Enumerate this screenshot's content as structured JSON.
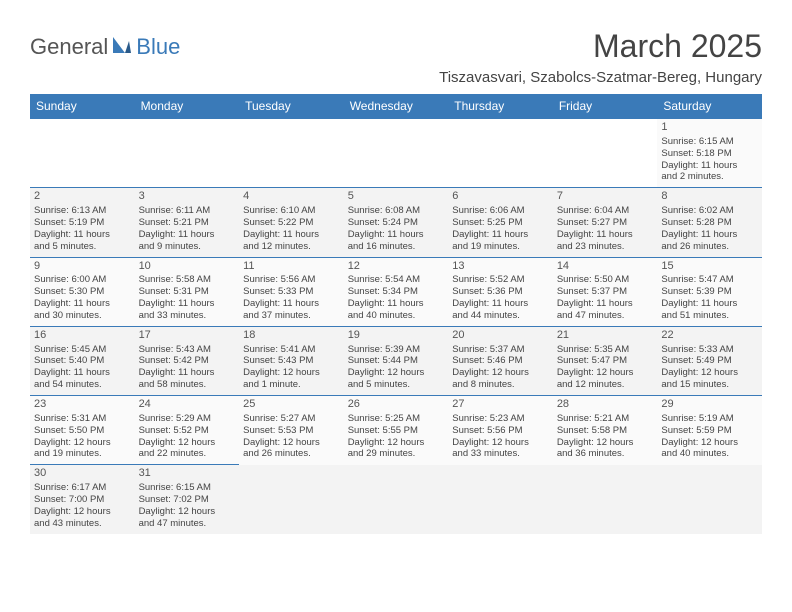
{
  "logo": {
    "part1": "General",
    "part2": "Blue"
  },
  "title": "March 2025",
  "subtitle": "Tiszavasvari, Szabolcs-Szatmar-Bereg, Hungary",
  "colors": {
    "header_bg": "#3a7ab8",
    "header_text": "#ffffff",
    "title_color": "#444444",
    "border": "#3a7ab8",
    "row_alt": "#f3f3f3",
    "row_bg": "#fafafa"
  },
  "weekdays": [
    "Sunday",
    "Monday",
    "Tuesday",
    "Wednesday",
    "Thursday",
    "Friday",
    "Saturday"
  ],
  "cells": [
    {
      "empty": true
    },
    {
      "empty": true
    },
    {
      "empty": true
    },
    {
      "empty": true
    },
    {
      "empty": true
    },
    {
      "empty": true
    },
    {
      "day": "1",
      "sunrise": "Sunrise: 6:15 AM",
      "sunset": "Sunset: 5:18 PM",
      "daylight1": "Daylight: 11 hours",
      "daylight2": "and 2 minutes."
    },
    {
      "day": "2",
      "sunrise": "Sunrise: 6:13 AM",
      "sunset": "Sunset: 5:19 PM",
      "daylight1": "Daylight: 11 hours",
      "daylight2": "and 5 minutes."
    },
    {
      "day": "3",
      "sunrise": "Sunrise: 6:11 AM",
      "sunset": "Sunset: 5:21 PM",
      "daylight1": "Daylight: 11 hours",
      "daylight2": "and 9 minutes."
    },
    {
      "day": "4",
      "sunrise": "Sunrise: 6:10 AM",
      "sunset": "Sunset: 5:22 PM",
      "daylight1": "Daylight: 11 hours",
      "daylight2": "and 12 minutes."
    },
    {
      "day": "5",
      "sunrise": "Sunrise: 6:08 AM",
      "sunset": "Sunset: 5:24 PM",
      "daylight1": "Daylight: 11 hours",
      "daylight2": "and 16 minutes."
    },
    {
      "day": "6",
      "sunrise": "Sunrise: 6:06 AM",
      "sunset": "Sunset: 5:25 PM",
      "daylight1": "Daylight: 11 hours",
      "daylight2": "and 19 minutes."
    },
    {
      "day": "7",
      "sunrise": "Sunrise: 6:04 AM",
      "sunset": "Sunset: 5:27 PM",
      "daylight1": "Daylight: 11 hours",
      "daylight2": "and 23 minutes."
    },
    {
      "day": "8",
      "sunrise": "Sunrise: 6:02 AM",
      "sunset": "Sunset: 5:28 PM",
      "daylight1": "Daylight: 11 hours",
      "daylight2": "and 26 minutes."
    },
    {
      "day": "9",
      "sunrise": "Sunrise: 6:00 AM",
      "sunset": "Sunset: 5:30 PM",
      "daylight1": "Daylight: 11 hours",
      "daylight2": "and 30 minutes."
    },
    {
      "day": "10",
      "sunrise": "Sunrise: 5:58 AM",
      "sunset": "Sunset: 5:31 PM",
      "daylight1": "Daylight: 11 hours",
      "daylight2": "and 33 minutes."
    },
    {
      "day": "11",
      "sunrise": "Sunrise: 5:56 AM",
      "sunset": "Sunset: 5:33 PM",
      "daylight1": "Daylight: 11 hours",
      "daylight2": "and 37 minutes."
    },
    {
      "day": "12",
      "sunrise": "Sunrise: 5:54 AM",
      "sunset": "Sunset: 5:34 PM",
      "daylight1": "Daylight: 11 hours",
      "daylight2": "and 40 minutes."
    },
    {
      "day": "13",
      "sunrise": "Sunrise: 5:52 AM",
      "sunset": "Sunset: 5:36 PM",
      "daylight1": "Daylight: 11 hours",
      "daylight2": "and 44 minutes."
    },
    {
      "day": "14",
      "sunrise": "Sunrise: 5:50 AM",
      "sunset": "Sunset: 5:37 PM",
      "daylight1": "Daylight: 11 hours",
      "daylight2": "and 47 minutes."
    },
    {
      "day": "15",
      "sunrise": "Sunrise: 5:47 AM",
      "sunset": "Sunset: 5:39 PM",
      "daylight1": "Daylight: 11 hours",
      "daylight2": "and 51 minutes."
    },
    {
      "day": "16",
      "sunrise": "Sunrise: 5:45 AM",
      "sunset": "Sunset: 5:40 PM",
      "daylight1": "Daylight: 11 hours",
      "daylight2": "and 54 minutes."
    },
    {
      "day": "17",
      "sunrise": "Sunrise: 5:43 AM",
      "sunset": "Sunset: 5:42 PM",
      "daylight1": "Daylight: 11 hours",
      "daylight2": "and 58 minutes."
    },
    {
      "day": "18",
      "sunrise": "Sunrise: 5:41 AM",
      "sunset": "Sunset: 5:43 PM",
      "daylight1": "Daylight: 12 hours",
      "daylight2": "and 1 minute."
    },
    {
      "day": "19",
      "sunrise": "Sunrise: 5:39 AM",
      "sunset": "Sunset: 5:44 PM",
      "daylight1": "Daylight: 12 hours",
      "daylight2": "and 5 minutes."
    },
    {
      "day": "20",
      "sunrise": "Sunrise: 5:37 AM",
      "sunset": "Sunset: 5:46 PM",
      "daylight1": "Daylight: 12 hours",
      "daylight2": "and 8 minutes."
    },
    {
      "day": "21",
      "sunrise": "Sunrise: 5:35 AM",
      "sunset": "Sunset: 5:47 PM",
      "daylight1": "Daylight: 12 hours",
      "daylight2": "and 12 minutes."
    },
    {
      "day": "22",
      "sunrise": "Sunrise: 5:33 AM",
      "sunset": "Sunset: 5:49 PM",
      "daylight1": "Daylight: 12 hours",
      "daylight2": "and 15 minutes."
    },
    {
      "day": "23",
      "sunrise": "Sunrise: 5:31 AM",
      "sunset": "Sunset: 5:50 PM",
      "daylight1": "Daylight: 12 hours",
      "daylight2": "and 19 minutes."
    },
    {
      "day": "24",
      "sunrise": "Sunrise: 5:29 AM",
      "sunset": "Sunset: 5:52 PM",
      "daylight1": "Daylight: 12 hours",
      "daylight2": "and 22 minutes."
    },
    {
      "day": "25",
      "sunrise": "Sunrise: 5:27 AM",
      "sunset": "Sunset: 5:53 PM",
      "daylight1": "Daylight: 12 hours",
      "daylight2": "and 26 minutes."
    },
    {
      "day": "26",
      "sunrise": "Sunrise: 5:25 AM",
      "sunset": "Sunset: 5:55 PM",
      "daylight1": "Daylight: 12 hours",
      "daylight2": "and 29 minutes."
    },
    {
      "day": "27",
      "sunrise": "Sunrise: 5:23 AM",
      "sunset": "Sunset: 5:56 PM",
      "daylight1": "Daylight: 12 hours",
      "daylight2": "and 33 minutes."
    },
    {
      "day": "28",
      "sunrise": "Sunrise: 5:21 AM",
      "sunset": "Sunset: 5:58 PM",
      "daylight1": "Daylight: 12 hours",
      "daylight2": "and 36 minutes."
    },
    {
      "day": "29",
      "sunrise": "Sunrise: 5:19 AM",
      "sunset": "Sunset: 5:59 PM",
      "daylight1": "Daylight: 12 hours",
      "daylight2": "and 40 minutes."
    },
    {
      "day": "30",
      "sunrise": "Sunrise: 6:17 AM",
      "sunset": "Sunset: 7:00 PM",
      "daylight1": "Daylight: 12 hours",
      "daylight2": "and 43 minutes."
    },
    {
      "day": "31",
      "sunrise": "Sunrise: 6:15 AM",
      "sunset": "Sunset: 7:02 PM",
      "daylight1": "Daylight: 12 hours",
      "daylight2": "and 47 minutes."
    },
    {
      "empty": true
    },
    {
      "empty": true
    },
    {
      "empty": true
    },
    {
      "empty": true
    },
    {
      "empty": true
    }
  ]
}
